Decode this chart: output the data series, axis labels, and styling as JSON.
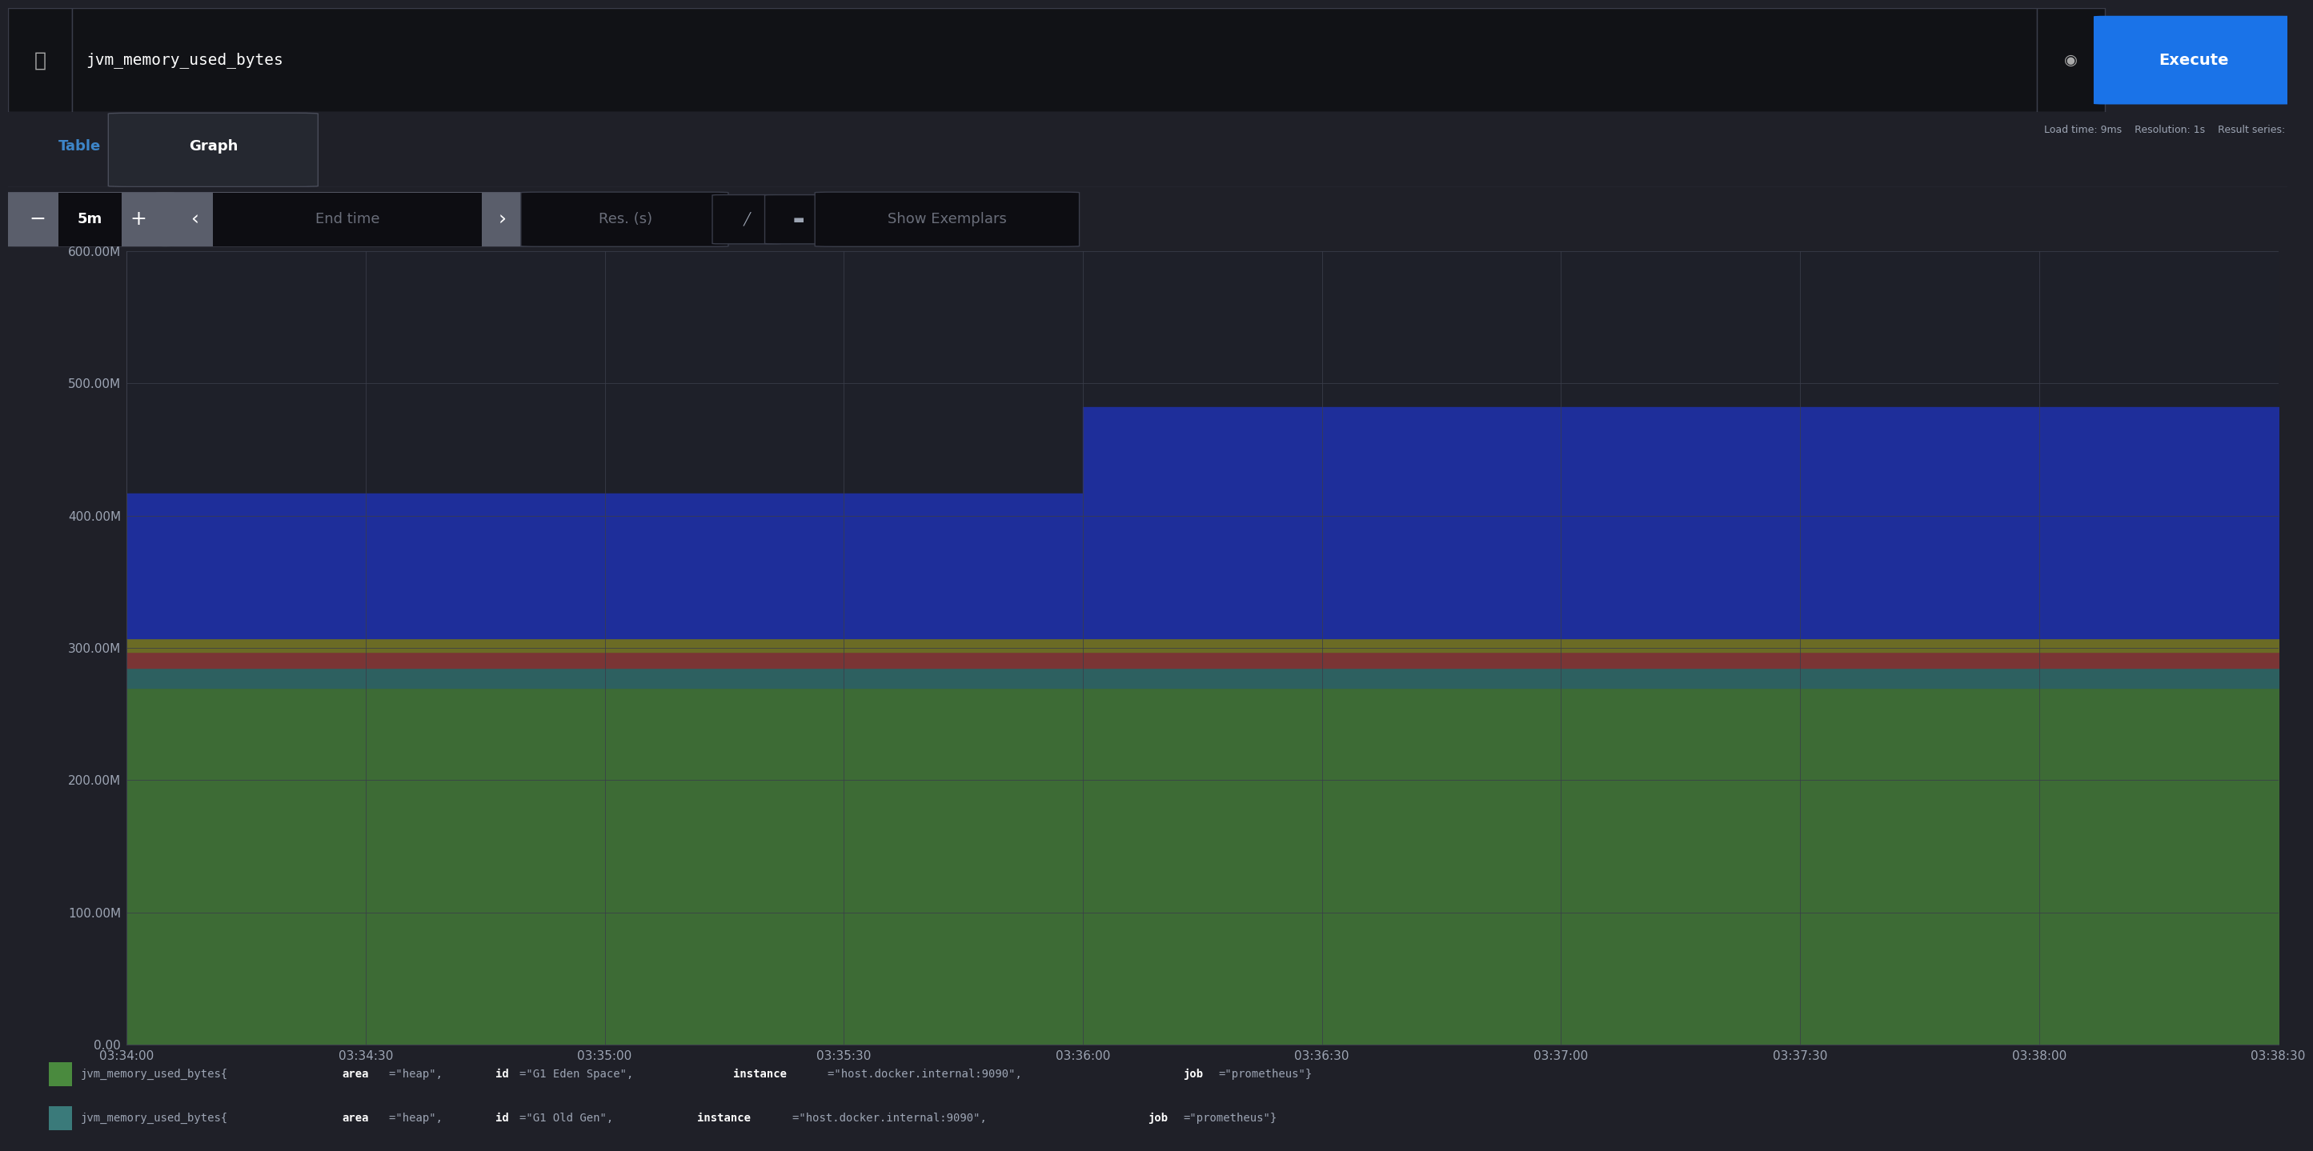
{
  "bg_color": "#1f2028",
  "plot_bg_color": "#1e2029",
  "grid_color": "#3a3d4a",
  "text_color": "#9da5b4",
  "search_query": "jvm_memory_used_bytes",
  "tab_table": "Table",
  "tab_graph": "Graph",
  "time_label": "End time",
  "res_label": "Res. (s)",
  "interval_label": "5m",
  "top_right_text": "Load time: 9ms    Resolution: 1s    Result series:",
  "execute_btn_color": "#1a73e8",
  "execute_btn_text": "Execute",
  "yticks": [
    0,
    100000000,
    200000000,
    300000000,
    400000000,
    500000000,
    600000000
  ],
  "ytick_labels": [
    "0.00",
    "100.00M",
    "200.00M",
    "300.00M",
    "400.00M",
    "500.00M",
    "600.00M"
  ],
  "xtick_labels": [
    "03:34:00",
    "03:34:30",
    "03:35:00",
    "03:35:30",
    "03:36:00",
    "03:36:30",
    "03:37:00",
    "03:37:30",
    "03:38:00",
    "03:38:30"
  ],
  "xmin": 0,
  "xmax": 9,
  "ymin": 0,
  "ymax": 600000000,
  "legend": [
    {
      "color": "#4a8a3e",
      "label_normal": "jvm_memory_used_bytes{",
      "label_bold1": "area",
      "label_mid1": "=\"heap\", ",
      "label_bold2": "id",
      "label_mid2": "=\"G1 Eden Space\", ",
      "label_bold3": "instance",
      "label_mid3": "=\"host.docker.internal:9090\", ",
      "label_bold4": "job",
      "label_end": "=\"prometheus\"}"
    },
    {
      "color": "#3a7a7a",
      "label_normal": "jvm_memory_used_bytes{",
      "label_bold1": "area",
      "label_mid1": "=\"heap\", ",
      "label_bold2": "id",
      "label_mid2": "=\"G1 Old Gen\", ",
      "label_bold3": "instance",
      "label_mid3": "=\"host.docker.internal:9090\", ",
      "label_bold4": "job",
      "label_end": "=\"prometheus\"}"
    }
  ],
  "x_points": [
    0,
    0.5,
    1.0,
    1.5,
    2.0,
    2.5,
    3.0,
    3.5,
    4.0,
    4.5,
    5.0,
    5.5,
    6.0,
    6.5,
    7.0,
    7.5,
    8.0,
    8.5,
    9.0
  ],
  "layer_green": [
    270000000,
    270000000,
    270000000,
    270000000,
    270000000,
    270000000,
    270000000,
    270000000,
    270000000,
    270000000,
    270000000,
    270000000,
    270000000,
    270000000,
    270000000,
    270000000,
    270000000,
    270000000,
    270000000
  ],
  "layer_teal": [
    15000000,
    15000000,
    15000000,
    15000000,
    15000000,
    15000000,
    15000000,
    15000000,
    15000000,
    15000000,
    15000000,
    15000000,
    15000000,
    15000000,
    15000000,
    15000000,
    15000000,
    15000000,
    15000000
  ],
  "layer_red": [
    12000000,
    12000000,
    12000000,
    12000000,
    12000000,
    12000000,
    12000000,
    12000000,
    12000000,
    12000000,
    12000000,
    12000000,
    12000000,
    12000000,
    12000000,
    12000000,
    12000000,
    12000000,
    12000000
  ],
  "layer_olive": [
    10000000,
    10000000,
    10000000,
    10000000,
    10000000,
    10000000,
    10000000,
    10000000,
    10000000,
    10000000,
    10000000,
    10000000,
    10000000,
    10000000,
    10000000,
    10000000,
    10000000,
    10000000,
    10000000
  ],
  "layer_blue": [
    110000000,
    110000000,
    110000000,
    110000000,
    110000000,
    110000000,
    110000000,
    110000000,
    175000000,
    175000000,
    175000000,
    175000000,
    175000000,
    175000000,
    175000000,
    175000000,
    175000000,
    175000000,
    175000000
  ],
  "layer_colors": [
    "#3d6b35",
    "#2d6060",
    "#7a3535",
    "#6b6b25",
    "#1e2e9a"
  ],
  "search_bg": "#111216",
  "ctrl_gray": "#5a5e6b",
  "ctrl_dark": "#0d0d12"
}
